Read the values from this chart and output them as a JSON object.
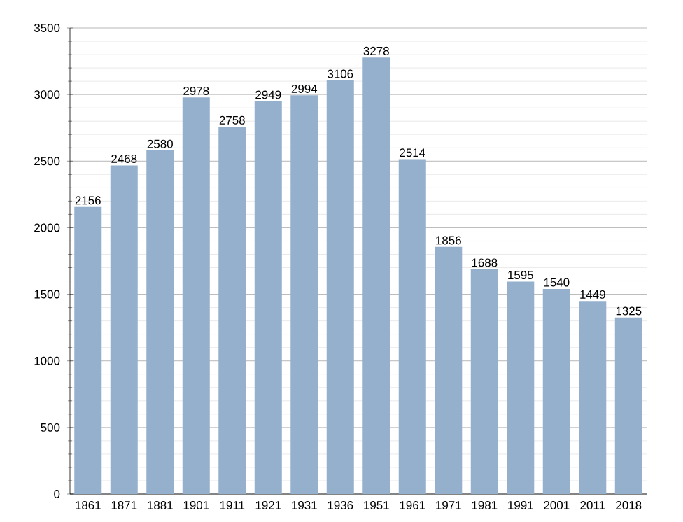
{
  "chart_data": {
    "type": "bar",
    "categories": [
      "1861",
      "1871",
      "1881",
      "1901",
      "1911",
      "1921",
      "1931",
      "1936",
      "1951",
      "1961",
      "1971",
      "1981",
      "1991",
      "2001",
      "2011",
      "2018"
    ],
    "values": [
      2156,
      2468,
      2580,
      2978,
      2758,
      2949,
      2994,
      3106,
      3278,
      2514,
      1856,
      1688,
      1595,
      1540,
      1449,
      1325
    ],
    "color": "#94b0cc",
    "ylim": [
      0,
      3500
    ],
    "yticks": [
      0,
      500,
      1000,
      1500,
      2000,
      2500,
      3000,
      3500
    ],
    "grid": "y",
    "data_labels": true
  }
}
